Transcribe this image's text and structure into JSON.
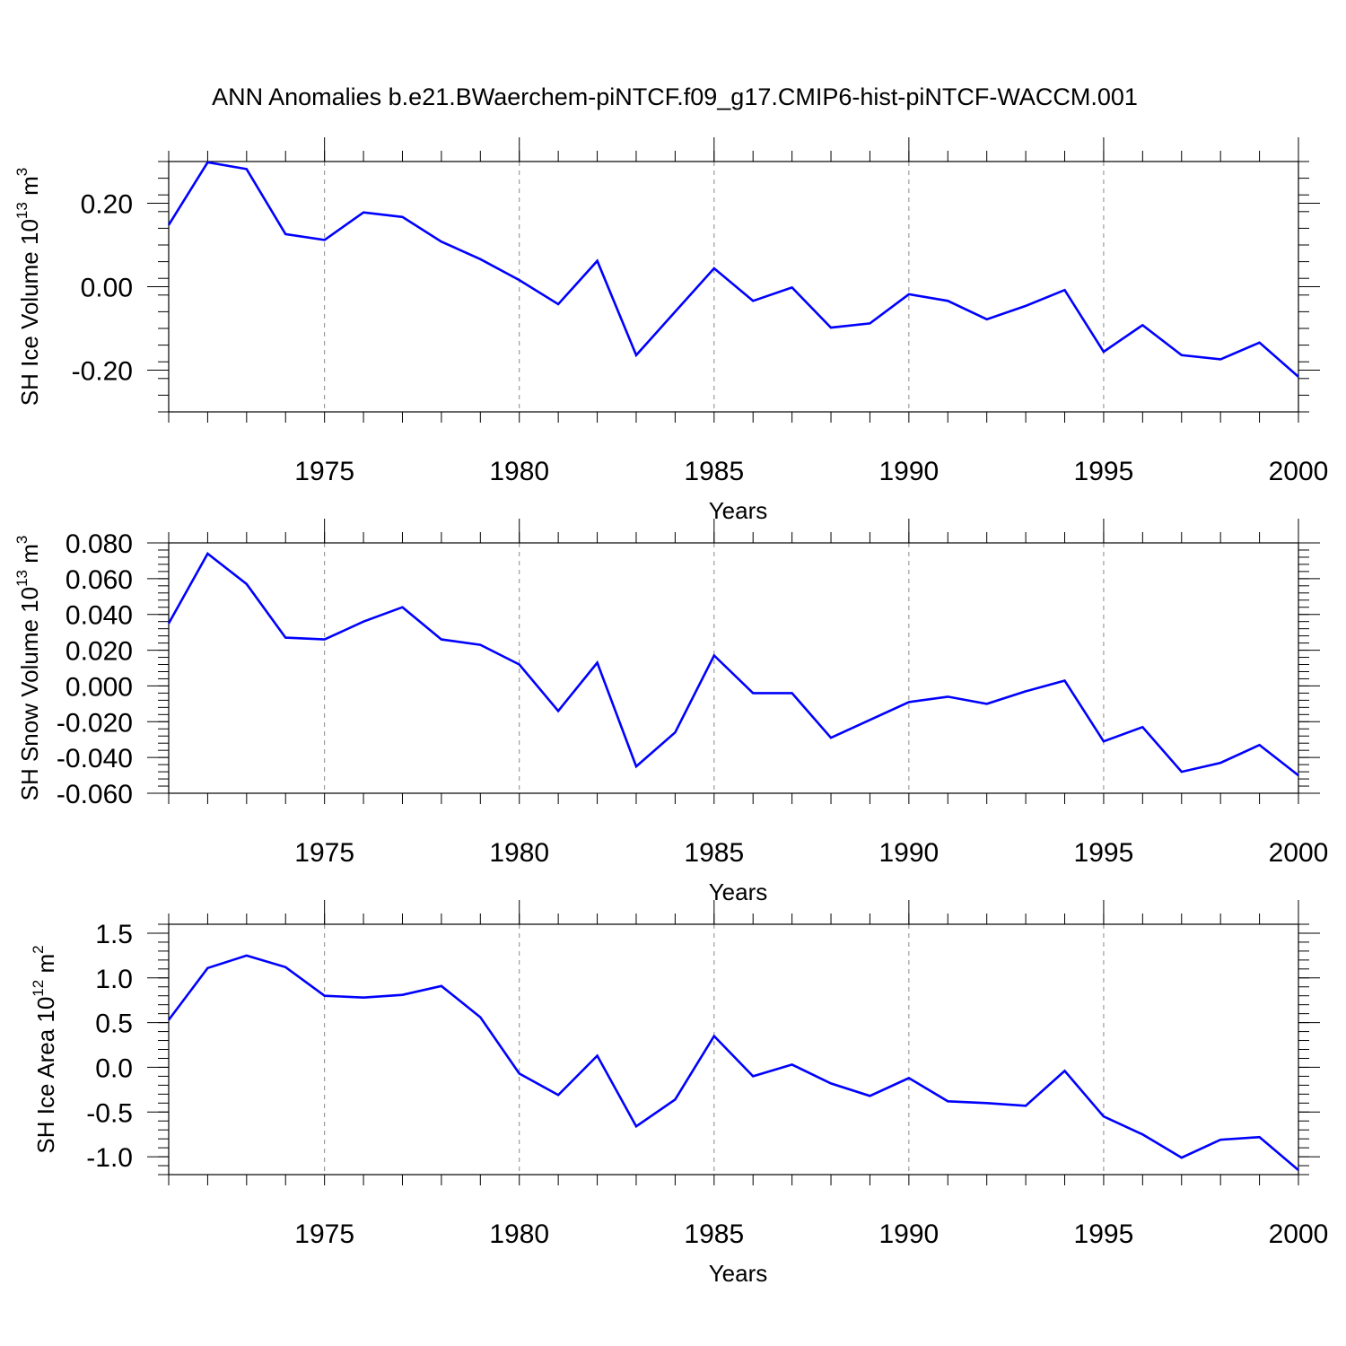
{
  "title": "ANN Anomalies b.e21.BWaerchem-piNTCF.f09_g17.CMIP6-hist-piNTCF-WACCM.001",
  "line_color": "#0000ff",
  "grid_color": "#888888",
  "chart_data": [
    {
      "type": "line",
      "name": "sh-ice-volume",
      "ylabel": "SH Ice Volume 10",
      "ylabel_exp": "13",
      "ylabel_unit": " m",
      "ylabel_unit_exp": "3",
      "xlabel": "Years",
      "xlim": [
        1971,
        2000
      ],
      "ylim": [
        -0.3,
        0.3
      ],
      "ytick_values": [
        -0.2,
        0.0,
        0.2
      ],
      "ytick_labels": [
        "-0.20",
        "0.00",
        "0.20"
      ],
      "xtick_values": [
        1975,
        1980,
        1985,
        1990,
        1995,
        2000
      ],
      "xtick_labels": [
        "1975",
        "1980",
        "1985",
        "1990",
        "1995",
        "2000"
      ],
      "grid_x": [
        1975,
        1980,
        1985,
        1990,
        1995
      ],
      "x": [
        1971,
        1972,
        1973,
        1974,
        1975,
        1976,
        1977,
        1978,
        1979,
        1980,
        1981,
        1982,
        1983,
        1984,
        1985,
        1986,
        1987,
        1988,
        1989,
        1990,
        1991,
        1992,
        1993,
        1994,
        1995,
        1996,
        1997,
        1998,
        1999,
        2000
      ],
      "y": [
        0.148,
        0.298,
        0.282,
        0.126,
        0.112,
        0.178,
        0.167,
        0.108,
        0.066,
        0.016,
        -0.042,
        0.062,
        -0.164,
        -0.06,
        0.044,
        -0.034,
        -0.002,
        -0.098,
        -0.088,
        -0.018,
        -0.034,
        -0.078,
        -0.046,
        -0.008,
        -0.156,
        -0.092,
        -0.164,
        -0.174,
        -0.134,
        -0.216
      ]
    },
    {
      "type": "line",
      "name": "sh-snow-volume",
      "ylabel": "SH Snow Volume 10",
      "ylabel_exp": "13",
      "ylabel_unit": " m",
      "ylabel_unit_exp": "3",
      "xlabel": "Years",
      "xlim": [
        1971,
        2000
      ],
      "ylim": [
        -0.06,
        0.08
      ],
      "ytick_values": [
        -0.06,
        -0.04,
        -0.02,
        0.0,
        0.02,
        0.04,
        0.06,
        0.08
      ],
      "ytick_labels": [
        "-0.060",
        "-0.040",
        "-0.020",
        "0.000",
        "0.020",
        "0.040",
        "0.060",
        "0.080"
      ],
      "xtick_values": [
        1975,
        1980,
        1985,
        1990,
        1995,
        2000
      ],
      "xtick_labels": [
        "1975",
        "1980",
        "1985",
        "1990",
        "1995",
        "2000"
      ],
      "grid_x": [
        1975,
        1980,
        1985,
        1990,
        1995
      ],
      "x": [
        1971,
        1972,
        1973,
        1974,
        1975,
        1976,
        1977,
        1978,
        1979,
        1980,
        1981,
        1982,
        1983,
        1984,
        1985,
        1986,
        1987,
        1988,
        1989,
        1990,
        1991,
        1992,
        1993,
        1994,
        1995,
        1996,
        1997,
        1998,
        1999,
        2000
      ],
      "y": [
        0.035,
        0.074,
        0.057,
        0.027,
        0.026,
        0.036,
        0.044,
        0.026,
        0.023,
        0.012,
        -0.014,
        0.013,
        -0.045,
        -0.026,
        0.017,
        -0.004,
        -0.004,
        -0.029,
        -0.019,
        -0.009,
        -0.006,
        -0.01,
        -0.003,
        0.003,
        -0.031,
        -0.023,
        -0.048,
        -0.043,
        -0.033,
        -0.05
      ]
    },
    {
      "type": "line",
      "name": "sh-ice-area",
      "ylabel": "SH Ice Area 10",
      "ylabel_exp": "12",
      "ylabel_unit": " m",
      "ylabel_unit_exp": "2",
      "xlabel": "Years",
      "xlim": [
        1971,
        2000
      ],
      "ylim": [
        -1.2,
        1.6
      ],
      "ytick_values": [
        -1.0,
        -0.5,
        0.0,
        0.5,
        1.0,
        1.5
      ],
      "ytick_labels": [
        "-1.0",
        "-0.5",
        "0.0",
        "0.5",
        "1.0",
        "1.5"
      ],
      "xtick_values": [
        1975,
        1980,
        1985,
        1990,
        1995,
        2000
      ],
      "xtick_labels": [
        "1975",
        "1980",
        "1985",
        "1990",
        "1995",
        "2000"
      ],
      "grid_x": [
        1975,
        1980,
        1985,
        1990,
        1995
      ],
      "x": [
        1971,
        1972,
        1973,
        1974,
        1975,
        1976,
        1977,
        1978,
        1979,
        1980,
        1981,
        1982,
        1983,
        1984,
        1985,
        1986,
        1987,
        1988,
        1989,
        1990,
        1991,
        1992,
        1993,
        1994,
        1995,
        1996,
        1997,
        1998,
        1999,
        2000
      ],
      "y": [
        0.53,
        1.11,
        1.25,
        1.12,
        0.8,
        0.78,
        0.81,
        0.91,
        0.56,
        -0.07,
        -0.31,
        0.13,
        -0.66,
        -0.36,
        0.35,
        -0.1,
        0.03,
        -0.18,
        -0.32,
        -0.12,
        -0.38,
        -0.4,
        -0.43,
        -0.04,
        -0.55,
        -0.75,
        -1.01,
        -0.81,
        -0.78,
        -1.15
      ]
    }
  ]
}
